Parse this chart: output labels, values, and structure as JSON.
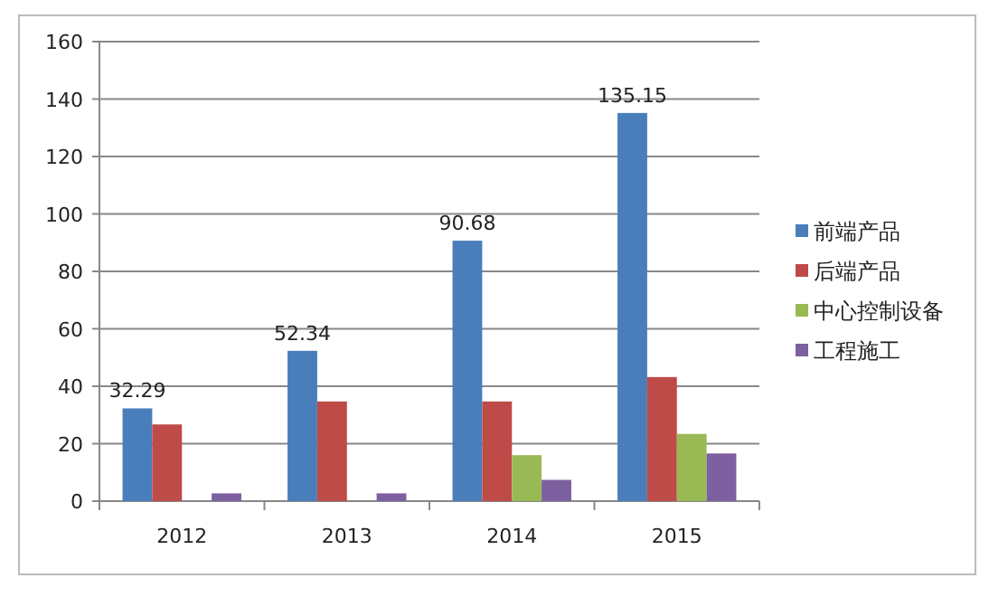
{
  "chart_data": {
    "type": "bar",
    "categories": [
      "2012",
      "2013",
      "2014",
      "2015"
    ],
    "series": [
      {
        "name": "前端产品",
        "color": "#4a7ebb",
        "values": [
          32.29,
          52.34,
          90.68,
          135.15
        ],
        "value_labels": [
          "32.29",
          "52.34",
          "90.68",
          "135.15"
        ]
      },
      {
        "name": "后端产品",
        "color": "#be4b48",
        "values": [
          26.7,
          34.7,
          34.7,
          43.2
        ]
      },
      {
        "name": "中心控制设备",
        "color": "#98b954",
        "values": [
          0,
          0,
          16,
          23.4
        ]
      },
      {
        "name": "工程施工",
        "color": "#7d60a0",
        "values": [
          2.7,
          2.7,
          7.4,
          16.6
        ]
      }
    ],
    "ylim": [
      0,
      160
    ],
    "yticks": [
      0,
      20,
      40,
      60,
      80,
      100,
      120,
      140,
      160
    ],
    "grid": "y",
    "legend": "right"
  }
}
